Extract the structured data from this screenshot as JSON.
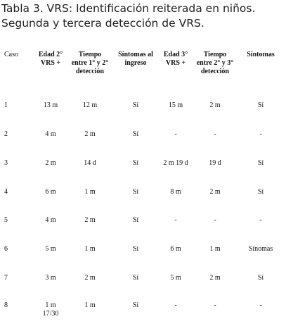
{
  "title": {
    "line1": "Tabla 3. VRS: Identificación reiterada en niños.",
    "line2": "Segunda y tercera detección de VRS."
  },
  "table": {
    "headers": [
      [
        "Caso"
      ],
      [
        "Edad 2°",
        "VRS +"
      ],
      [
        "Tiempo",
        "entre 1° y 2°",
        "detección"
      ],
      [
        "Síntomas al",
        "ingreso"
      ],
      [
        "Edad 3°",
        "VRS +"
      ],
      [
        "Tiempo",
        "entre 2° y 3°",
        "detección"
      ],
      [
        "Síntomas"
      ]
    ],
    "rows": [
      [
        "1",
        "13 m",
        "12 m",
        "Sí",
        "15 m",
        "2 m",
        "Sí"
      ],
      [
        "2",
        "4 m",
        "2 m",
        "Sí",
        "-",
        "-",
        "-"
      ],
      [
        "3",
        "2 m",
        "14 d",
        "Sí",
        "2 m 19 d",
        "19 d",
        "Sí"
      ],
      [
        "4",
        "6 m",
        "1 m",
        "Sí",
        "8 m",
        "2 m",
        "Sí"
      ],
      [
        "5",
        "4 m",
        "2 m",
        "Sí",
        "-",
        "-",
        "-"
      ],
      [
        "6",
        "5 m",
        "1 m",
        "Sí",
        "6 m",
        "1 m",
        "Sínomas"
      ],
      [
        "7",
        "3 m",
        "2 m",
        "Sí",
        "5 m",
        "2 m",
        "Sí"
      ],
      [
        "8",
        "1 m 17/30",
        "1 m",
        "Sí",
        "-",
        "-",
        "-"
      ]
    ]
  }
}
